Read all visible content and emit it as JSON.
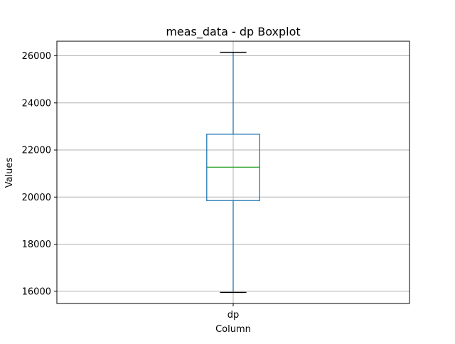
{
  "chart_data": {
    "type": "boxplot",
    "title": "meas_data - dp Boxplot",
    "xlabel": "Column",
    "ylabel": "Values",
    "categories": [
      "dp"
    ],
    "boxes": [
      {
        "category": "dp",
        "whisker_low": 15950,
        "q1": 19850,
        "median": 21270,
        "q3": 22670,
        "whisker_high": 26150
      }
    ],
    "ylim": [
      15480,
      26620
    ],
    "yticks": [
      16000,
      18000,
      20000,
      22000,
      24000,
      26000
    ],
    "ytick_labels": [
      "16000",
      "18000",
      "20000",
      "22000",
      "24000",
      "26000"
    ],
    "grid": true,
    "colors": {
      "box": "#1f77b4",
      "whisker": "#1f77b4",
      "median": "#2ca02c",
      "cap": "#000000",
      "grid": "#b0b0b0",
      "frame": "#000000"
    }
  }
}
